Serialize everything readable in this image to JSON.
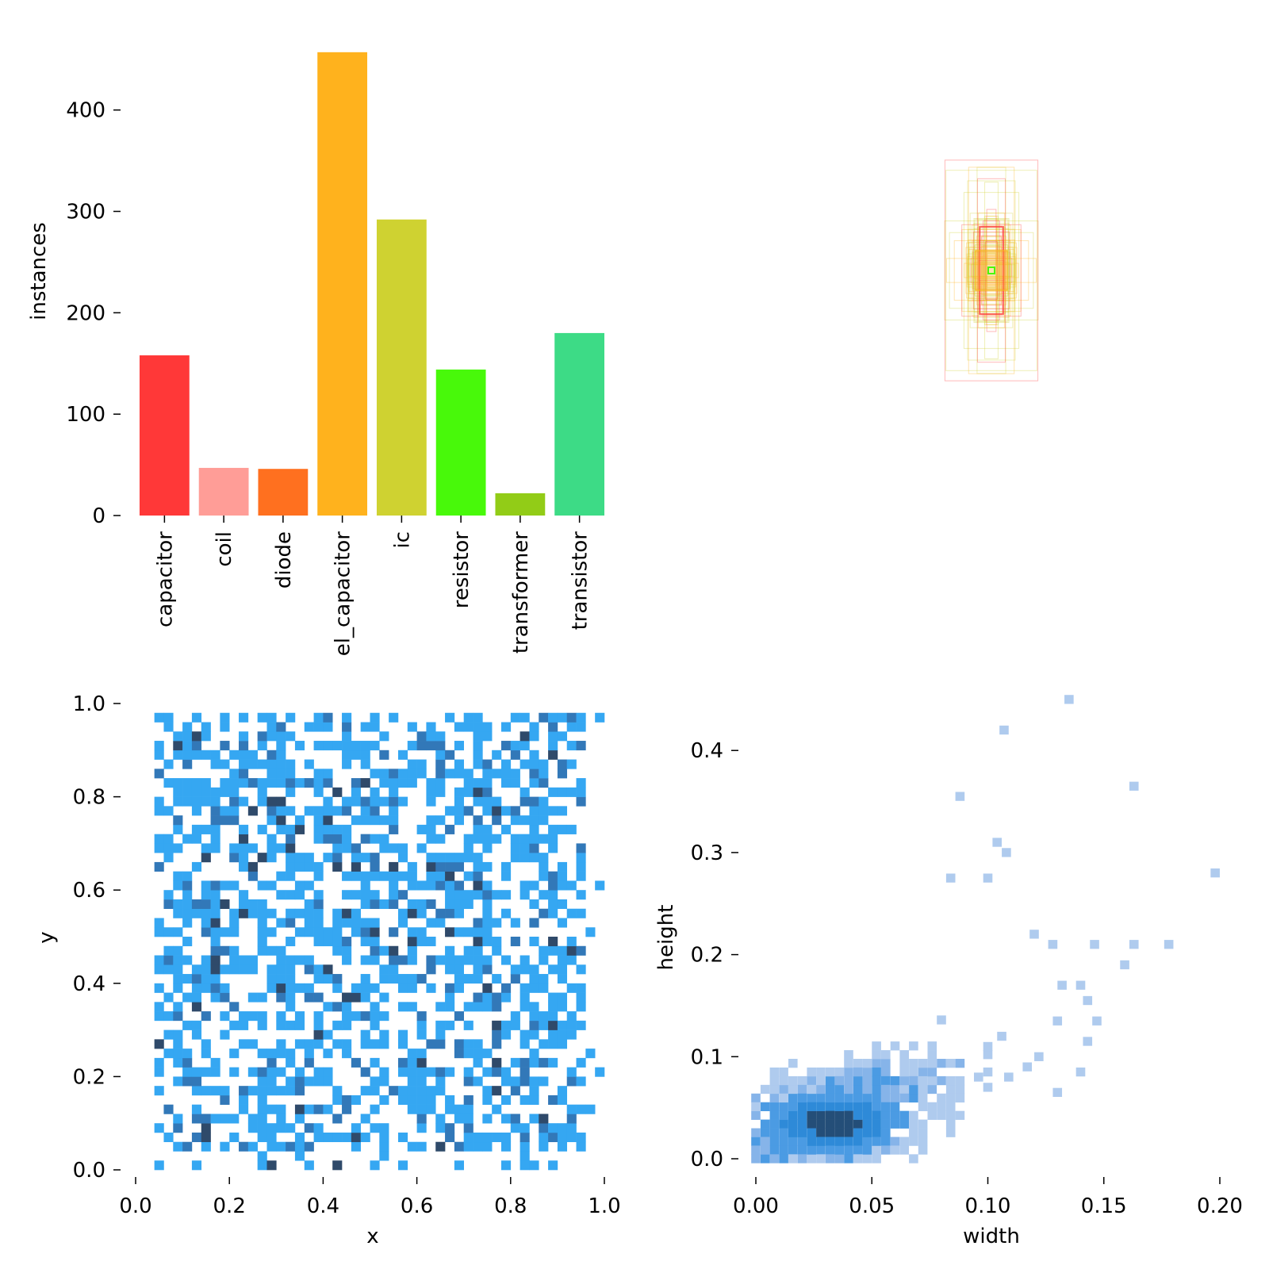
{
  "chart_data": [
    {
      "type": "bar",
      "ylabel": "instances",
      "ylim": [
        0,
        460
      ],
      "yticks": [
        0,
        100,
        200,
        300,
        400
      ],
      "categories": [
        "capacitor",
        "coil",
        "diode",
        "el_capacitor",
        "ic",
        "resistor",
        "transformer",
        "transistor"
      ],
      "values": [
        158,
        47,
        46,
        457,
        292,
        144,
        22,
        180
      ],
      "colors": [
        "#FF3838",
        "#FF9D97",
        "#FF701F",
        "#FFB21D",
        "#CFD231",
        "#48F90A",
        "#92CC17",
        "#3DDB86"
      ]
    },
    {
      "type": "bbox_overlay",
      "description_colors": [
        "#FF3838",
        "#CFD231",
        "#FFB21D",
        "#48F90A"
      ]
    },
    {
      "type": "heatmap",
      "xlabel": "x",
      "ylabel": "y",
      "xlim": [
        0,
        1
      ],
      "ylim": [
        0,
        1
      ],
      "xticks": [
        "0.0",
        "0.2",
        "0.4",
        "0.6",
        "0.8",
        "1.0"
      ],
      "yticks": [
        "0.0",
        "0.2",
        "0.4",
        "0.6",
        "0.8",
        "1.0"
      ],
      "bins": 50,
      "colors": [
        "#35A7F2",
        "#3278B8",
        "#2F4A6A"
      ]
    },
    {
      "type": "heatmap",
      "xlabel": "width",
      "ylabel": "height",
      "xlim": [
        0,
        0.2
      ],
      "ylim": [
        0,
        0.46
      ],
      "xticks": [
        "0.00",
        "0.05",
        "0.10",
        "0.15",
        "0.20"
      ],
      "yticks": [
        "0.0",
        "0.1",
        "0.2",
        "0.3",
        "0.4"
      ],
      "colors": [
        "#AFCBEE",
        "#86B4E9",
        "#4B9BE3",
        "#2E8AD8",
        "#244E78"
      ]
    }
  ]
}
